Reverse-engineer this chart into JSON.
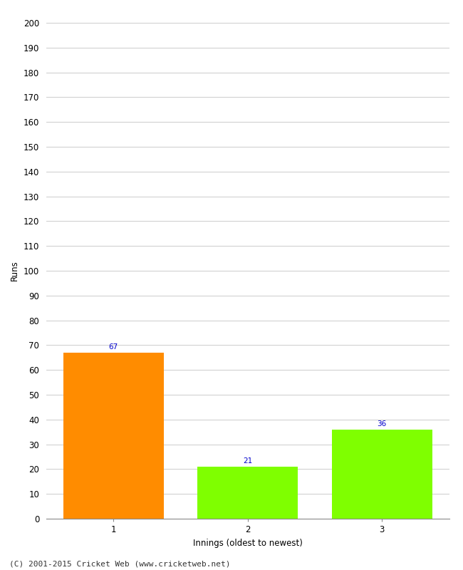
{
  "categories": [
    "1",
    "2",
    "3"
  ],
  "values": [
    67,
    21,
    36
  ],
  "bar_colors": [
    "#ff8c00",
    "#7fff00",
    "#7fff00"
  ],
  "xlabel": "Innings (oldest to newest)",
  "ylabel": "Runs",
  "ylim": [
    0,
    200
  ],
  "yticks": [
    0,
    10,
    20,
    30,
    40,
    50,
    60,
    70,
    80,
    90,
    100,
    110,
    120,
    130,
    140,
    150,
    160,
    170,
    180,
    190,
    200
  ],
  "value_label_color": "#0000cc",
  "value_label_fontsize": 7.5,
  "axis_label_fontsize": 8.5,
  "tick_fontsize": 8.5,
  "footer_text": "(C) 2001-2015 Cricket Web (www.cricketweb.net)",
  "footer_fontsize": 8,
  "background_color": "#ffffff",
  "grid_color": "#cccccc"
}
